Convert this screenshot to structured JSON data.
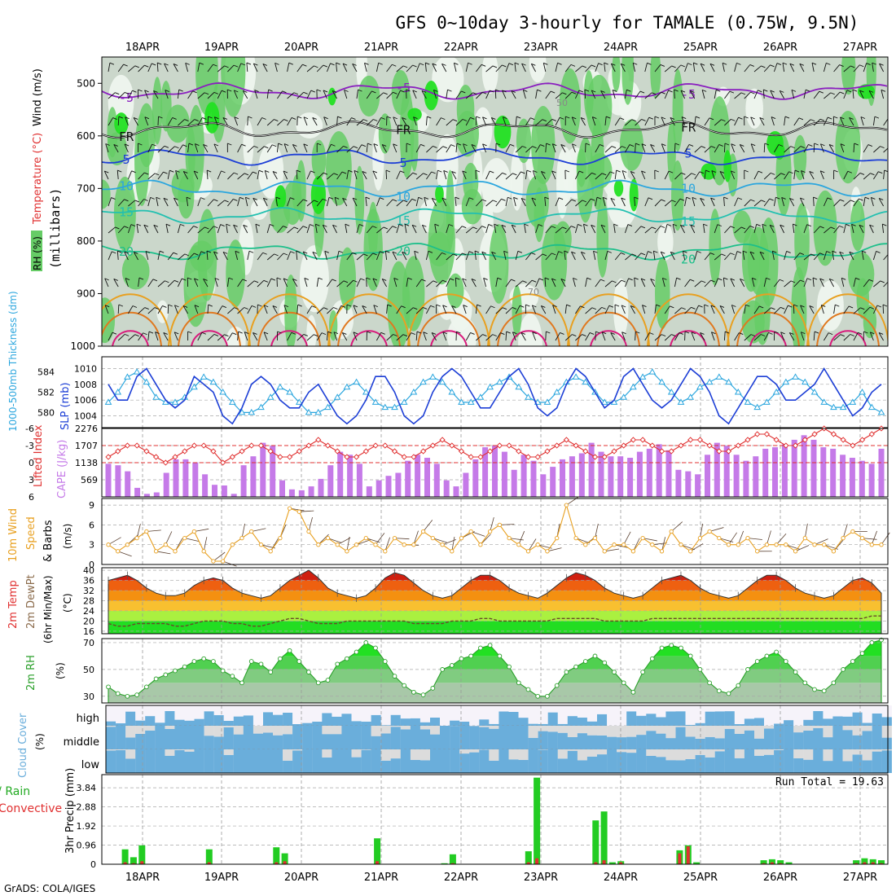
{
  "title": "GFS 0~10day 3-hourly for TAMALE (0.75W, 9.5N)",
  "footer": "GrADS: COLA/IGES",
  "colors": {
    "rh_light": "#eef6ee",
    "rh_mid": "#c6d4c6",
    "rh_dark": "#aab9aa",
    "rh_green": "#66cc66",
    "rh_bright": "#22e022",
    "purple": "#8a1fbf",
    "black": "#111111",
    "blue": "#1d3fd6",
    "sky": "#2ba6de",
    "teal": "#22c0b0",
    "green_iso": "#1cbf8a",
    "orange": "#e8a020",
    "darkorange": "#e0781e",
    "magenta": "#d81b7c",
    "cape": "#c57ae8",
    "lifted": "#e03030",
    "wind10": "#e8a020",
    "rhline": "#2aa02a",
    "cloud": "#6aaedb",
    "precip": "#22cc22",
    "conv": "#e03030"
  },
  "dates": [
    "18APR",
    "19APR",
    "20APR",
    "21APR",
    "22APR",
    "23APR",
    "24APR",
    "25APR",
    "26APR",
    "27APR"
  ],
  "panel_labels": {
    "wind": "Wind (m/s)",
    "temp": "Temperature (°C)",
    "rh": "RH (%)",
    "millibars": "(millibars)",
    "thick": "1000-500mb Thickness (dm)",
    "slp": "SLP (mb)",
    "lifted": "Lifted Index",
    "cape": "CAPE (J/kg)",
    "wind10_a": "10m Wind",
    "wind10_b": "Speed",
    "wind10_c": "& Barbs",
    "wind10_unit": "(m/s)",
    "t2m_a": "2m Temp",
    "t2m_b": "2m DewPt",
    "t2m_c": "(6hr Min/Max)",
    "t2m_unit": "(°C)",
    "rh2m": "2m RH",
    "rh2m_unit": "(%)",
    "cloud": "Cloud Cover",
    "cloud_unit": "(%)",
    "cloud_high": "high",
    "cloud_mid": "middle",
    "cloud_low": "low",
    "precip_a": "Total / Rain",
    "precip_b": "Convective",
    "precip_c": "3hr Precip (mm)",
    "run_total": "Run Total = 19.63"
  },
  "chart_data": [
    {
      "type": "heatmap",
      "name": "Cross-section RH / Temperature / Wind",
      "yaxis_label": "millibars",
      "ylim": [
        450,
        1000
      ],
      "yticks": [
        500,
        600,
        700,
        800,
        900,
        1000
      ],
      "isotherms": [
        {
          "label": "-5",
          "level": 515,
          "color": "purple"
        },
        {
          "label": "FR",
          "level": 588,
          "color": "black"
        },
        {
          "label": "5",
          "level": 640,
          "color": "blue"
        },
        {
          "label": "10",
          "level": 700,
          "color": "sky"
        },
        {
          "label": "15",
          "level": 752,
          "color": "teal"
        },
        {
          "label": "20",
          "level": 820,
          "color": "green_iso"
        }
      ],
      "rh_contour_labels": [
        "50",
        "70"
      ]
    },
    {
      "type": "line",
      "name": "Thickness and SLP",
      "left_yticks": [
        580,
        582,
        584
      ],
      "right_yticks": [
        1004,
        1006,
        1008,
        1010
      ],
      "left_ylim": [
        578.5,
        585.5
      ],
      "right_ylim": [
        1002.5,
        1011.5
      ],
      "series": [
        {
          "name": "SLP (mb)",
          "axis": "right",
          "values": [
            1008,
            1006,
            1006,
            1009,
            1010,
            1008,
            1006,
            1005,
            1006,
            1009,
            1008,
            1007,
            1004,
            1003,
            1005,
            1008,
            1009,
            1008,
            1006,
            1005,
            1005,
            1007,
            1008,
            1006,
            1004,
            1003,
            1004,
            1006,
            1009,
            1009,
            1007,
            1004,
            1003,
            1004,
            1007,
            1009,
            1010,
            1009,
            1007,
            1005,
            1005,
            1007,
            1009,
            1010,
            1008,
            1005,
            1004,
            1005,
            1008,
            1010,
            1009,
            1007,
            1005,
            1006,
            1009,
            1010,
            1008,
            1006,
            1005,
            1006,
            1008,
            1010,
            1009,
            1007,
            1004,
            1003,
            1005,
            1007,
            1009,
            1009,
            1008,
            1006,
            1006,
            1007,
            1008,
            1010,
            1008,
            1006,
            1004,
            1005,
            1007,
            1008
          ]
        },
        {
          "name": "1000-500mb Thickness (dm)",
          "axis": "left",
          "values": [
            581,
            582,
            583.5,
            584,
            583,
            581.5,
            581,
            581,
            581.5,
            582.5,
            583.5,
            583,
            582,
            581,
            580,
            580,
            580.5,
            581.5,
            582.5,
            582,
            581,
            580,
            580,
            580.5,
            581.5,
            582.5,
            583,
            582,
            581,
            580.5,
            580.5,
            581,
            582,
            583,
            583.5,
            583,
            582,
            581,
            581,
            581.5,
            582.5,
            583,
            583.5,
            582.5,
            581.5,
            581,
            581,
            582,
            583,
            583.5,
            583,
            582,
            581,
            581,
            581.5,
            582.5,
            583.5,
            584,
            583,
            582,
            581,
            581.5,
            582.5,
            583,
            583.5,
            583,
            582,
            581,
            580.5,
            581,
            582,
            583,
            583.5,
            583,
            582,
            581,
            580.5,
            580.5,
            581,
            582,
            580.5,
            580
          ]
        }
      ]
    },
    {
      "type": "bar",
      "name": "CAPE and Lifted Index",
      "cape_yticks": [
        569,
        1138,
        1707,
        2276
      ],
      "cape_ylim": [
        0,
        2276
      ],
      "li_yticks": [
        -6,
        -3,
        0,
        3,
        6
      ],
      "li_ylim": [
        -6,
        6
      ],
      "series": [
        {
          "name": "CAPE (J/kg)",
          "values": [
            1100,
            1050,
            850,
            300,
            100,
            150,
            800,
            1250,
            1250,
            1150,
            750,
            400,
            380,
            100,
            1050,
            1350,
            1800,
            1700,
            550,
            250,
            220,
            350,
            600,
            1050,
            1500,
            1400,
            1100,
            350,
            550,
            700,
            800,
            1200,
            1400,
            1300,
            1100,
            550,
            350,
            800,
            1250,
            1650,
            1700,
            1500,
            900,
            1400,
            1200,
            750,
            1000,
            1250,
            1350,
            1450,
            1800,
            1500,
            1350,
            1350,
            1300,
            1500,
            1600,
            1750,
            1550,
            900,
            850,
            750,
            1400,
            1800,
            1700,
            1400,
            1200,
            1350,
            1600,
            1650,
            1750,
            1900,
            2050,
            1900,
            1650,
            1600,
            1400,
            1300,
            1200,
            1100,
            1600
          ]
        },
        {
          "name": "Lifted Index",
          "values": [
            -1,
            -2,
            -3,
            -3,
            -2,
            -1,
            0,
            -1,
            -2,
            -3,
            -3,
            -2,
            0,
            -1,
            -2,
            -3,
            -3,
            -2,
            -1,
            -1,
            -2,
            -3,
            -4,
            -3,
            -2,
            -1,
            -1,
            -2,
            -3,
            -3,
            -2,
            -1,
            -1,
            -2,
            -3,
            -4,
            -3,
            -2,
            -1,
            -1,
            -2,
            -3,
            -3,
            -2,
            -1,
            -1,
            -2,
            -3,
            -4,
            -3,
            -2,
            -1,
            -1,
            -2,
            -3,
            -4,
            -4,
            -3,
            -2,
            -2,
            -3,
            -4,
            -4,
            -3,
            -2,
            -2,
            -3,
            -4,
            -5,
            -5,
            -4,
            -3,
            -3,
            -4,
            -5,
            -6,
            -5,
            -4,
            -3,
            -4,
            -5,
            -6
          ]
        }
      ]
    },
    {
      "type": "line",
      "name": "10m Wind Speed & Barbs",
      "ylabel": "(m/s)",
      "yticks": [
        0,
        3,
        6,
        9
      ],
      "ylim": [
        0,
        10
      ],
      "series": [
        {
          "name": "10m Wind Speed",
          "values": [
            3,
            2,
            3,
            4,
            5,
            2,
            3,
            2,
            4,
            5,
            2,
            0.5,
            0.5,
            3,
            4,
            5,
            3,
            2,
            4,
            8.5,
            8,
            5,
            3,
            4,
            3,
            2,
            3,
            4,
            3,
            2,
            4,
            3,
            3,
            5,
            4,
            3,
            2,
            4,
            5,
            3,
            5,
            6,
            4,
            3,
            2,
            3,
            2,
            4,
            9,
            4,
            3,
            4,
            2,
            3,
            3,
            2,
            4,
            3,
            2,
            5,
            3,
            2,
            4,
            5,
            4,
            3,
            3,
            4,
            2,
            3,
            3,
            3,
            2,
            4,
            3,
            3,
            2,
            4,
            5,
            4,
            3,
            3
          ]
        }
      ]
    },
    {
      "type": "area",
      "name": "2m Temp / DewPt",
      "ylabel": "(°C)",
      "yticks": [
        16,
        20,
        24,
        28,
        32,
        36,
        40
      ],
      "ylim": [
        15,
        41
      ],
      "series": [
        {
          "name": "2m Temp",
          "values": [
            36,
            37,
            38,
            36,
            33,
            31,
            30,
            30,
            31,
            34,
            36,
            37,
            36,
            33,
            31,
            30,
            29,
            30,
            33,
            36,
            38,
            40,
            37,
            33,
            31,
            30,
            29,
            30,
            33,
            37,
            39,
            38,
            35,
            32,
            30,
            29,
            30,
            33,
            36,
            38,
            38,
            36,
            33,
            31,
            30,
            29,
            31,
            34,
            37,
            39,
            38,
            36,
            33,
            31,
            30,
            29,
            30,
            33,
            36,
            37,
            38,
            36,
            33,
            31,
            30,
            29,
            30,
            33,
            36,
            38,
            38,
            36,
            33,
            31,
            30,
            29,
            30,
            33,
            36,
            37,
            35,
            31
          ]
        },
        {
          "name": "2m DewPt",
          "values": [
            19,
            18,
            18,
            19,
            19,
            19,
            19,
            18,
            18,
            19,
            20,
            20,
            20,
            19,
            19,
            18,
            18,
            19,
            20,
            21,
            21,
            20,
            19,
            19,
            19,
            20,
            20,
            20,
            20,
            20,
            20,
            20,
            19,
            19,
            19,
            19,
            20,
            20,
            20,
            21,
            21,
            20,
            20,
            20,
            20,
            20,
            20,
            21,
            21,
            21,
            21,
            21,
            20,
            20,
            20,
            20,
            20,
            21,
            21,
            21,
            21,
            21,
            21,
            21,
            21,
            21,
            21,
            21,
            21,
            21,
            21,
            21,
            21,
            21,
            21,
            21,
            21,
            21,
            21,
            21,
            22,
            22
          ]
        }
      ]
    },
    {
      "type": "area",
      "name": "2m RH",
      "ylabel": "(%)",
      "yticks": [
        30,
        50,
        70
      ],
      "ylim": [
        25,
        73
      ],
      "series": [
        {
          "name": "2m RH",
          "values": [
            37,
            32,
            30,
            31,
            37,
            43,
            46,
            49,
            52,
            56,
            58,
            56,
            49,
            45,
            40,
            56,
            54,
            48,
            58,
            64,
            56,
            48,
            40,
            42,
            54,
            58,
            63,
            70,
            66,
            56,
            45,
            38,
            33,
            31,
            36,
            50,
            53,
            58,
            60,
            66,
            68,
            60,
            52,
            40,
            35,
            30,
            30,
            38,
            48,
            52,
            56,
            60,
            55,
            48,
            40,
            33,
            48,
            58,
            66,
            68,
            66,
            60,
            50,
            40,
            34,
            32,
            38,
            50,
            56,
            60,
            63,
            56,
            48,
            40,
            35,
            34,
            40,
            50,
            56,
            62,
            70,
            72
          ]
        }
      ]
    },
    {
      "type": "bar",
      "name": "Cloud Cover",
      "categories": [
        "high",
        "middle",
        "low"
      ]
    },
    {
      "type": "bar",
      "name": "3hr Precip",
      "ylabel": "3hr Precip (mm)",
      "yticks": [
        0,
        0.96,
        1.92,
        2.88,
        3.84
      ],
      "ylim": [
        0,
        4.5
      ],
      "run_total": 19.63,
      "series": [
        {
          "name": "Total / Rain",
          "values": [
            0,
            0,
            0.75,
            0.35,
            0.95,
            0,
            0,
            0,
            0,
            0,
            0,
            0,
            0.75,
            0,
            0,
            0,
            0,
            0,
            0,
            0,
            0.85,
            0.55,
            0,
            0,
            0,
            0,
            0,
            0,
            0,
            0,
            0,
            0,
            1.3,
            0,
            0,
            0,
            0,
            0,
            0,
            0,
            0.05,
            0.5,
            0,
            0,
            0,
            0,
            0,
            0,
            0,
            0,
            0.65,
            4.35,
            0,
            0,
            0,
            0,
            0,
            0,
            2.2,
            2.65,
            0.1,
            0.15,
            0,
            0,
            0,
            0,
            0,
            0,
            0.7,
            0.95,
            0.1,
            0,
            0,
            0,
            0,
            0,
            0,
            0,
            0.2,
            0.25,
            0.2,
            0.1,
            0,
            0,
            0,
            0,
            0,
            0,
            0,
            0.2,
            0.3,
            0.25,
            0.2
          ]
        },
        {
          "name": "Convective",
          "values": [
            0,
            0,
            0.1,
            0.05,
            0.15,
            0,
            0,
            0,
            0,
            0,
            0,
            0,
            0.1,
            0,
            0,
            0,
            0,
            0,
            0,
            0,
            0.1,
            0.15,
            0,
            0,
            0,
            0,
            0,
            0,
            0,
            0,
            0,
            0,
            0.15,
            0,
            0,
            0,
            0,
            0,
            0,
            0,
            0,
            0.05,
            0,
            0,
            0,
            0,
            0,
            0,
            0,
            0,
            0.1,
            0.3,
            0,
            0,
            0,
            0,
            0,
            0,
            0.1,
            0.2,
            0,
            0.1,
            0,
            0,
            0,
            0,
            0,
            0,
            0.55,
            0.9,
            0,
            0,
            0,
            0,
            0,
            0,
            0,
            0,
            0.05,
            0.1,
            0.05,
            0,
            0,
            0,
            0,
            0,
            0,
            0,
            0,
            0.05,
            0.1,
            0.1,
            0.05
          ]
        }
      ]
    }
  ]
}
